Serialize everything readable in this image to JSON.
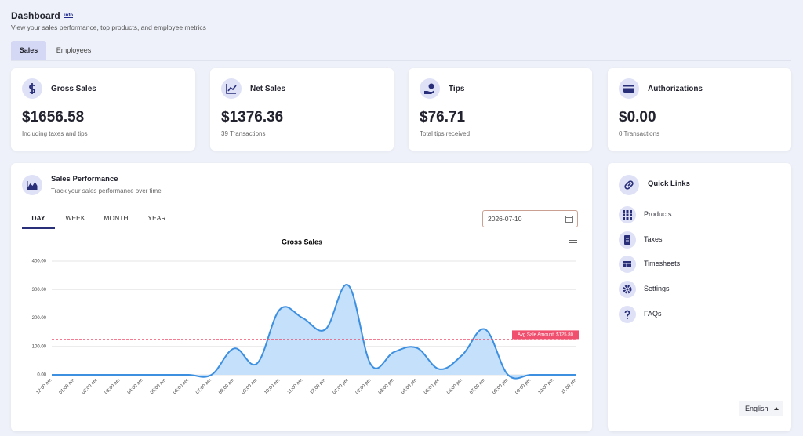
{
  "header": {
    "title": "Dashboard",
    "info": "info",
    "subtitle": "View your sales performance, top products, and employee metrics"
  },
  "tabs": [
    "Sales",
    "Employees"
  ],
  "cards": [
    {
      "title": "Gross Sales",
      "value": "$1656.58",
      "note": "Including taxes and tips"
    },
    {
      "title": "Net Sales",
      "value": "$1376.36",
      "note": "39 Transactions"
    },
    {
      "title": "Tips",
      "value": "$76.71",
      "note": "Total tips received"
    },
    {
      "title": "Authorizations",
      "value": "$0.00",
      "note": "0 Transactions"
    }
  ],
  "sales_performance": {
    "title": "Sales Performance",
    "subtitle": "Track your sales performance over time",
    "periods": [
      "DAY",
      "WEEK",
      "MONTH",
      "YEAR"
    ],
    "date": "2026-07-10"
  },
  "chart_data": {
    "type": "area",
    "title": "Gross Sales",
    "categories": [
      "12:00 am",
      "01:00 am",
      "02:00 am",
      "03:00 am",
      "04:00 am",
      "05:00 am",
      "06:00 am",
      "07:00 am",
      "08:00 am",
      "09:00 am",
      "10:00 am",
      "11:00 am",
      "12:00 pm",
      "01:00 pm",
      "02:00 pm",
      "03:00 pm",
      "04:00 pm",
      "05:00 pm",
      "06:00 pm",
      "07:00 pm",
      "08:00 pm",
      "09:00 pm",
      "10:00 pm",
      "11:00 pm"
    ],
    "values": [
      0,
      0,
      0,
      0,
      0,
      0,
      0,
      0,
      93,
      40,
      230,
      200,
      160,
      315,
      35,
      80,
      95,
      20,
      70,
      160,
      0,
      0,
      0,
      0
    ],
    "color": "#3d8fe0",
    "fill": "#c5e0fb",
    "ylim": [
      0,
      400
    ],
    "yticks": [
      {
        "value": 0,
        "label": "0.00"
      },
      {
        "value": 100,
        "label": "100.00"
      },
      {
        "value": 200,
        "label": "200.00"
      },
      {
        "value": 300,
        "label": "300.00"
      },
      {
        "value": 400,
        "label": "400.00"
      }
    ],
    "grid": true,
    "avg_line": {
      "value": 125.8,
      "label": "Avg Sale Amount: $125.80",
      "color": "#f0506e"
    }
  },
  "quick_links": {
    "title": "Quick Links",
    "items": [
      "Products",
      "Taxes",
      "Timesheets",
      "Settings",
      "FAQs"
    ]
  },
  "language": "English"
}
